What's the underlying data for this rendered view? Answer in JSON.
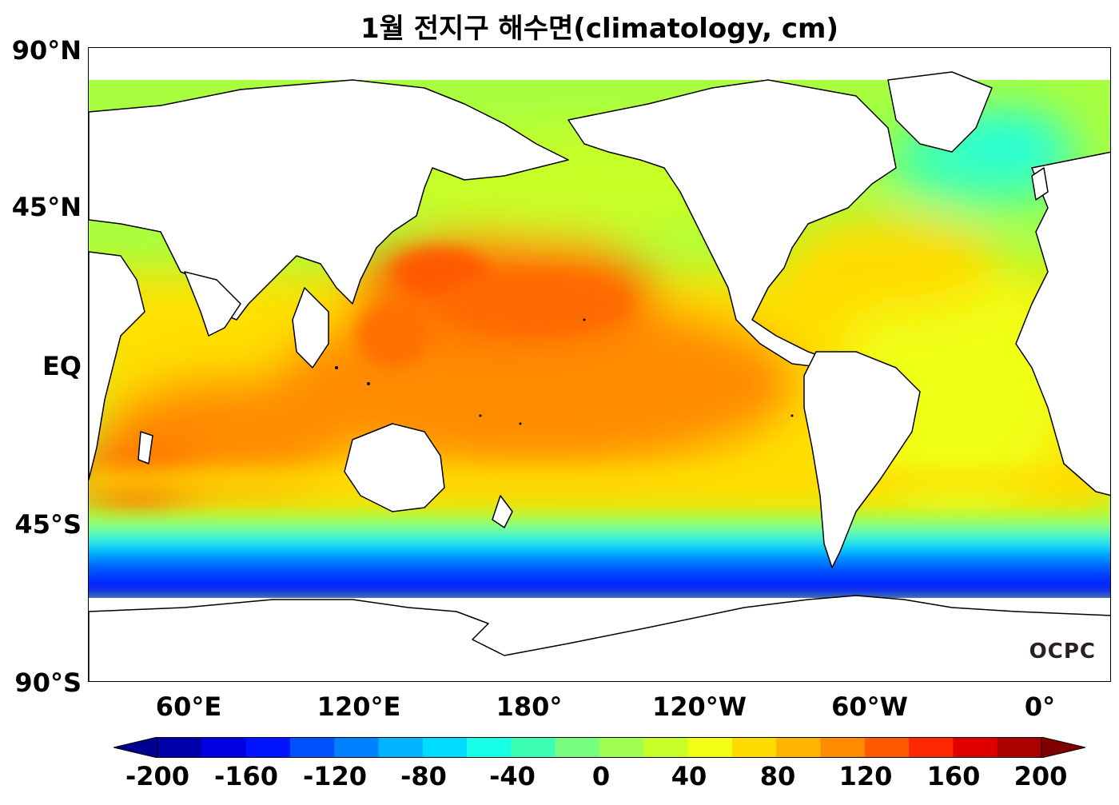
{
  "title": "1월 전지구 해수면(climatology, cm)",
  "yaxis": {
    "labels": [
      "90°N",
      "45°N",
      "EQ",
      "45°S",
      "90°S"
    ]
  },
  "xaxis": {
    "labels": [
      "60°E",
      "120°E",
      "180°",
      "120°W",
      "60°W",
      "0°"
    ]
  },
  "colorbar": {
    "ticks": [
      "-200",
      "-160",
      "-120",
      "-80",
      "-40",
      "0",
      "40",
      "80",
      "120",
      "160",
      "200"
    ],
    "colors": [
      "#0000aa",
      "#0000e0",
      "#0014ff",
      "#0050ff",
      "#0082ff",
      "#00b4ff",
      "#00dcff",
      "#14ffe6",
      "#3cffb4",
      "#78ff82",
      "#a0ff50",
      "#c8ff28",
      "#f0ff14",
      "#ffdc00",
      "#ffb400",
      "#ff8c00",
      "#ff5a00",
      "#ff2800",
      "#e00000",
      "#aa0000"
    ],
    "under_color": "#000090",
    "over_color": "#800000"
  },
  "logo": "OCPC",
  "colors": {
    "land": "#ffffff",
    "coast": "#000000",
    "frame": "#000000"
  }
}
